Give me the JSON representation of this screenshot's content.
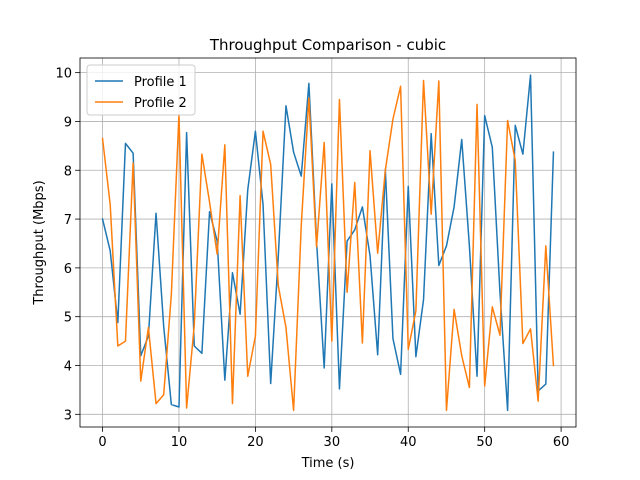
{
  "chart_data": {
    "type": "line",
    "title": "Throughput Comparison - cubic",
    "xlabel": "Time (s)",
    "ylabel": "Throughput (Mbps)",
    "xlim": [
      -2.95,
      61.95
    ],
    "ylim": [
      2.74,
      10.3
    ],
    "x_ticks": [
      0,
      10,
      20,
      30,
      40,
      50,
      60
    ],
    "y_ticks": [
      3,
      4,
      5,
      6,
      7,
      8,
      9,
      10
    ],
    "grid": true,
    "legend_position": "top-left",
    "x": [
      0,
      1,
      2,
      3,
      4,
      5,
      6,
      7,
      8,
      9,
      10,
      11,
      12,
      13,
      14,
      15,
      16,
      17,
      18,
      19,
      20,
      21,
      22,
      23,
      24,
      25,
      26,
      27,
      28,
      29,
      30,
      31,
      32,
      33,
      34,
      35,
      36,
      37,
      38,
      39,
      40,
      41,
      42,
      43,
      44,
      45,
      46,
      47,
      48,
      49,
      50,
      51,
      52,
      53,
      54,
      55,
      56,
      57,
      58,
      59
    ],
    "series": [
      {
        "name": "Profile 1",
        "color": "#1f77b4",
        "values": [
          7.0,
          6.35,
          4.88,
          8.55,
          8.35,
          4.2,
          4.6,
          7.12,
          4.8,
          3.2,
          3.15,
          8.77,
          4.4,
          4.25,
          7.15,
          6.55,
          3.7,
          5.9,
          5.05,
          7.6,
          8.8,
          7.3,
          3.63,
          6.25,
          9.32,
          8.37,
          7.88,
          9.78,
          6.55,
          3.95,
          7.72,
          3.52,
          6.55,
          6.78,
          7.25,
          6.25,
          4.22,
          8.02,
          4.55,
          3.82,
          7.67,
          4.18,
          5.35,
          8.75,
          6.05,
          6.45,
          7.25,
          8.63,
          6.45,
          3.78,
          9.12,
          8.47,
          5.5,
          3.08,
          8.92,
          8.33,
          9.95,
          3.48,
          3.62,
          8.37
        ]
      },
      {
        "name": "Profile 2",
        "color": "#ff7f0e",
        "values": [
          8.65,
          7.3,
          4.4,
          4.5,
          8.15,
          3.68,
          4.78,
          3.22,
          3.4,
          5.45,
          9.15,
          3.13,
          4.82,
          8.33,
          7.35,
          6.28,
          8.52,
          3.22,
          7.48,
          3.78,
          4.6,
          8.8,
          8.12,
          5.63,
          4.78,
          3.08,
          6.87,
          9.48,
          6.43,
          8.57,
          4.5,
          9.45,
          5.5,
          7.75,
          4.46,
          8.4,
          6.3,
          8.0,
          9.05,
          9.72,
          4.33,
          5.12,
          9.84,
          7.1,
          9.83,
          3.08,
          5.15,
          4.2,
          3.55,
          9.35,
          3.58,
          5.2,
          4.62,
          9.02,
          8.2,
          4.45,
          4.75,
          3.27,
          6.45,
          4.0
        ]
      }
    ]
  }
}
